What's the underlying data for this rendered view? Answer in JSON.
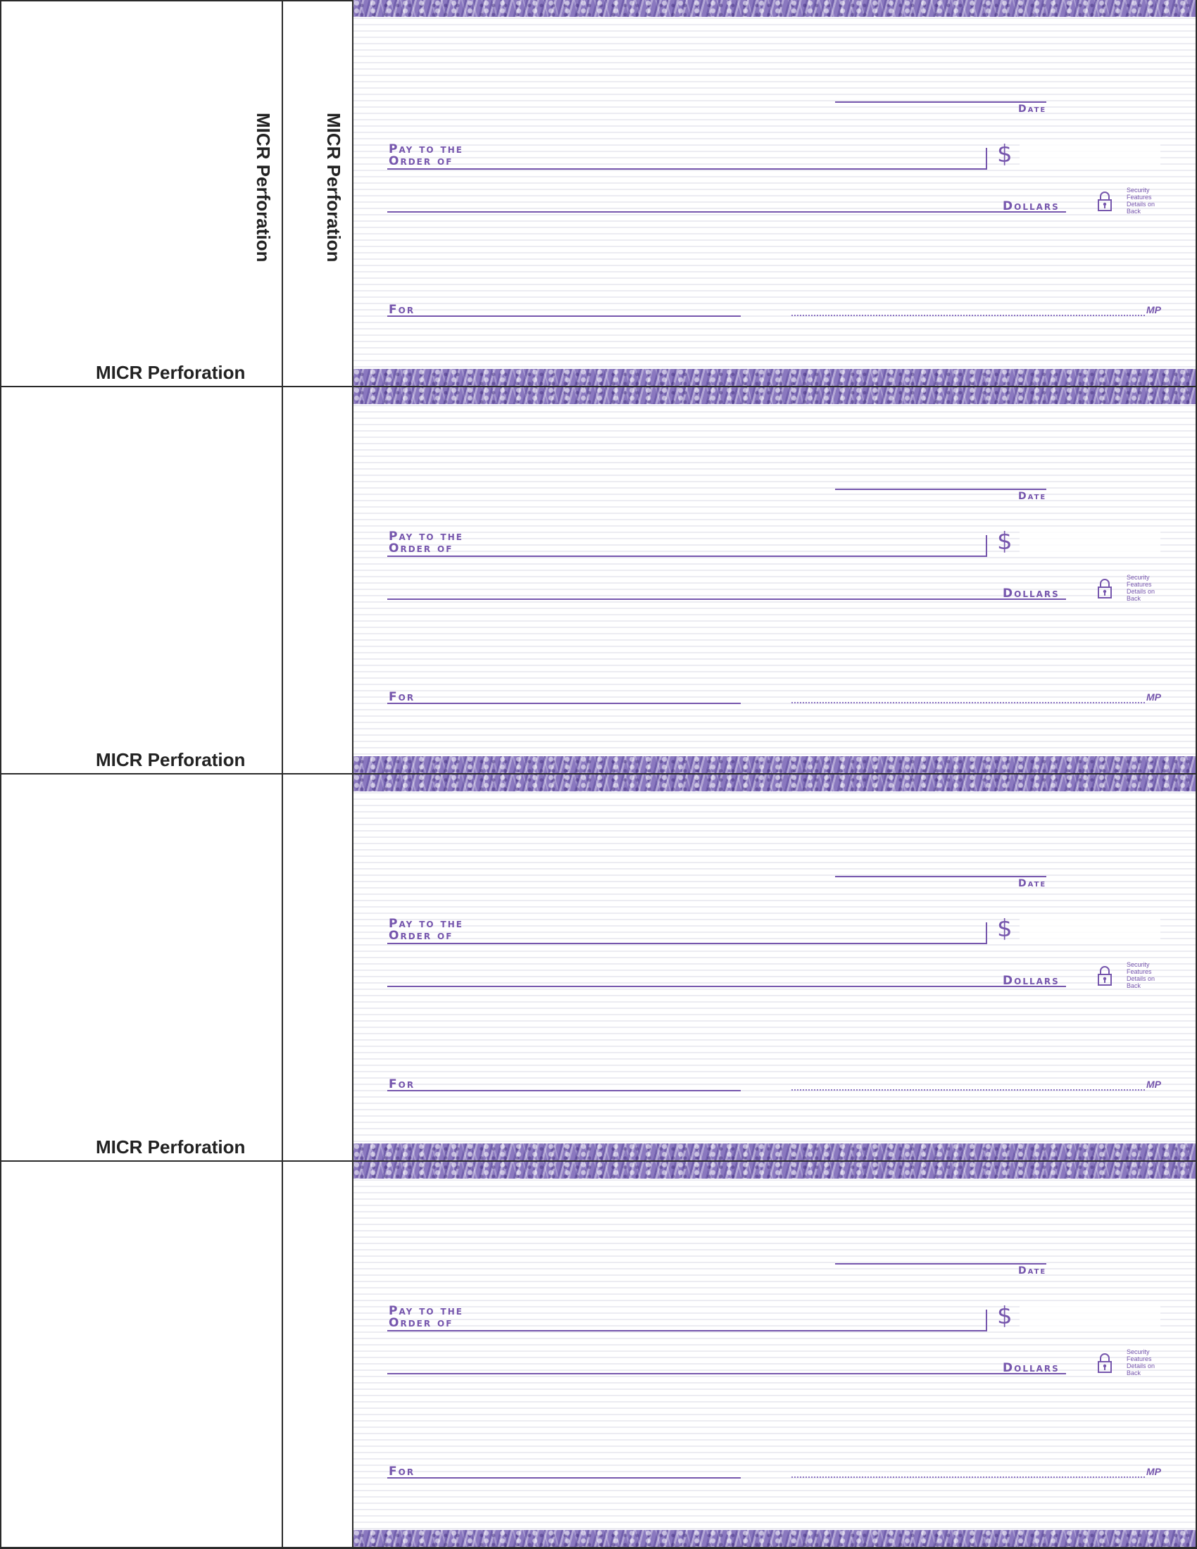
{
  "sheet": {
    "perforation_label": "MICR Perforation",
    "accent_color": "#7656ad"
  },
  "checks": [
    {
      "date_label": "Date",
      "pay_to_line1": "Pay to the",
      "pay_to_line2": "Order of",
      "dollar_sign": "$",
      "dollars_label": "Dollars",
      "security_text": "Security Features Details on Back",
      "lock_icon": "padlock-icon",
      "for_label": "For",
      "mp_mark": "MP"
    },
    {
      "date_label": "Date",
      "pay_to_line1": "Pay to the",
      "pay_to_line2": "Order of",
      "dollar_sign": "$",
      "dollars_label": "Dollars",
      "security_text": "Security Features Details on Back",
      "lock_icon": "padlock-icon",
      "for_label": "For",
      "mp_mark": "MP"
    },
    {
      "date_label": "Date",
      "pay_to_line1": "Pay to the",
      "pay_to_line2": "Order of",
      "dollar_sign": "$",
      "dollars_label": "Dollars",
      "security_text": "Security Features Details on Back",
      "lock_icon": "padlock-icon",
      "for_label": "For",
      "mp_mark": "MP"
    },
    {
      "date_label": "Date",
      "pay_to_line1": "Pay to the",
      "pay_to_line2": "Order of",
      "dollar_sign": "$",
      "dollars_label": "Dollars",
      "security_text": "Security Features Details on Back",
      "lock_icon": "padlock-icon",
      "for_label": "For",
      "mp_mark": "MP"
    }
  ]
}
